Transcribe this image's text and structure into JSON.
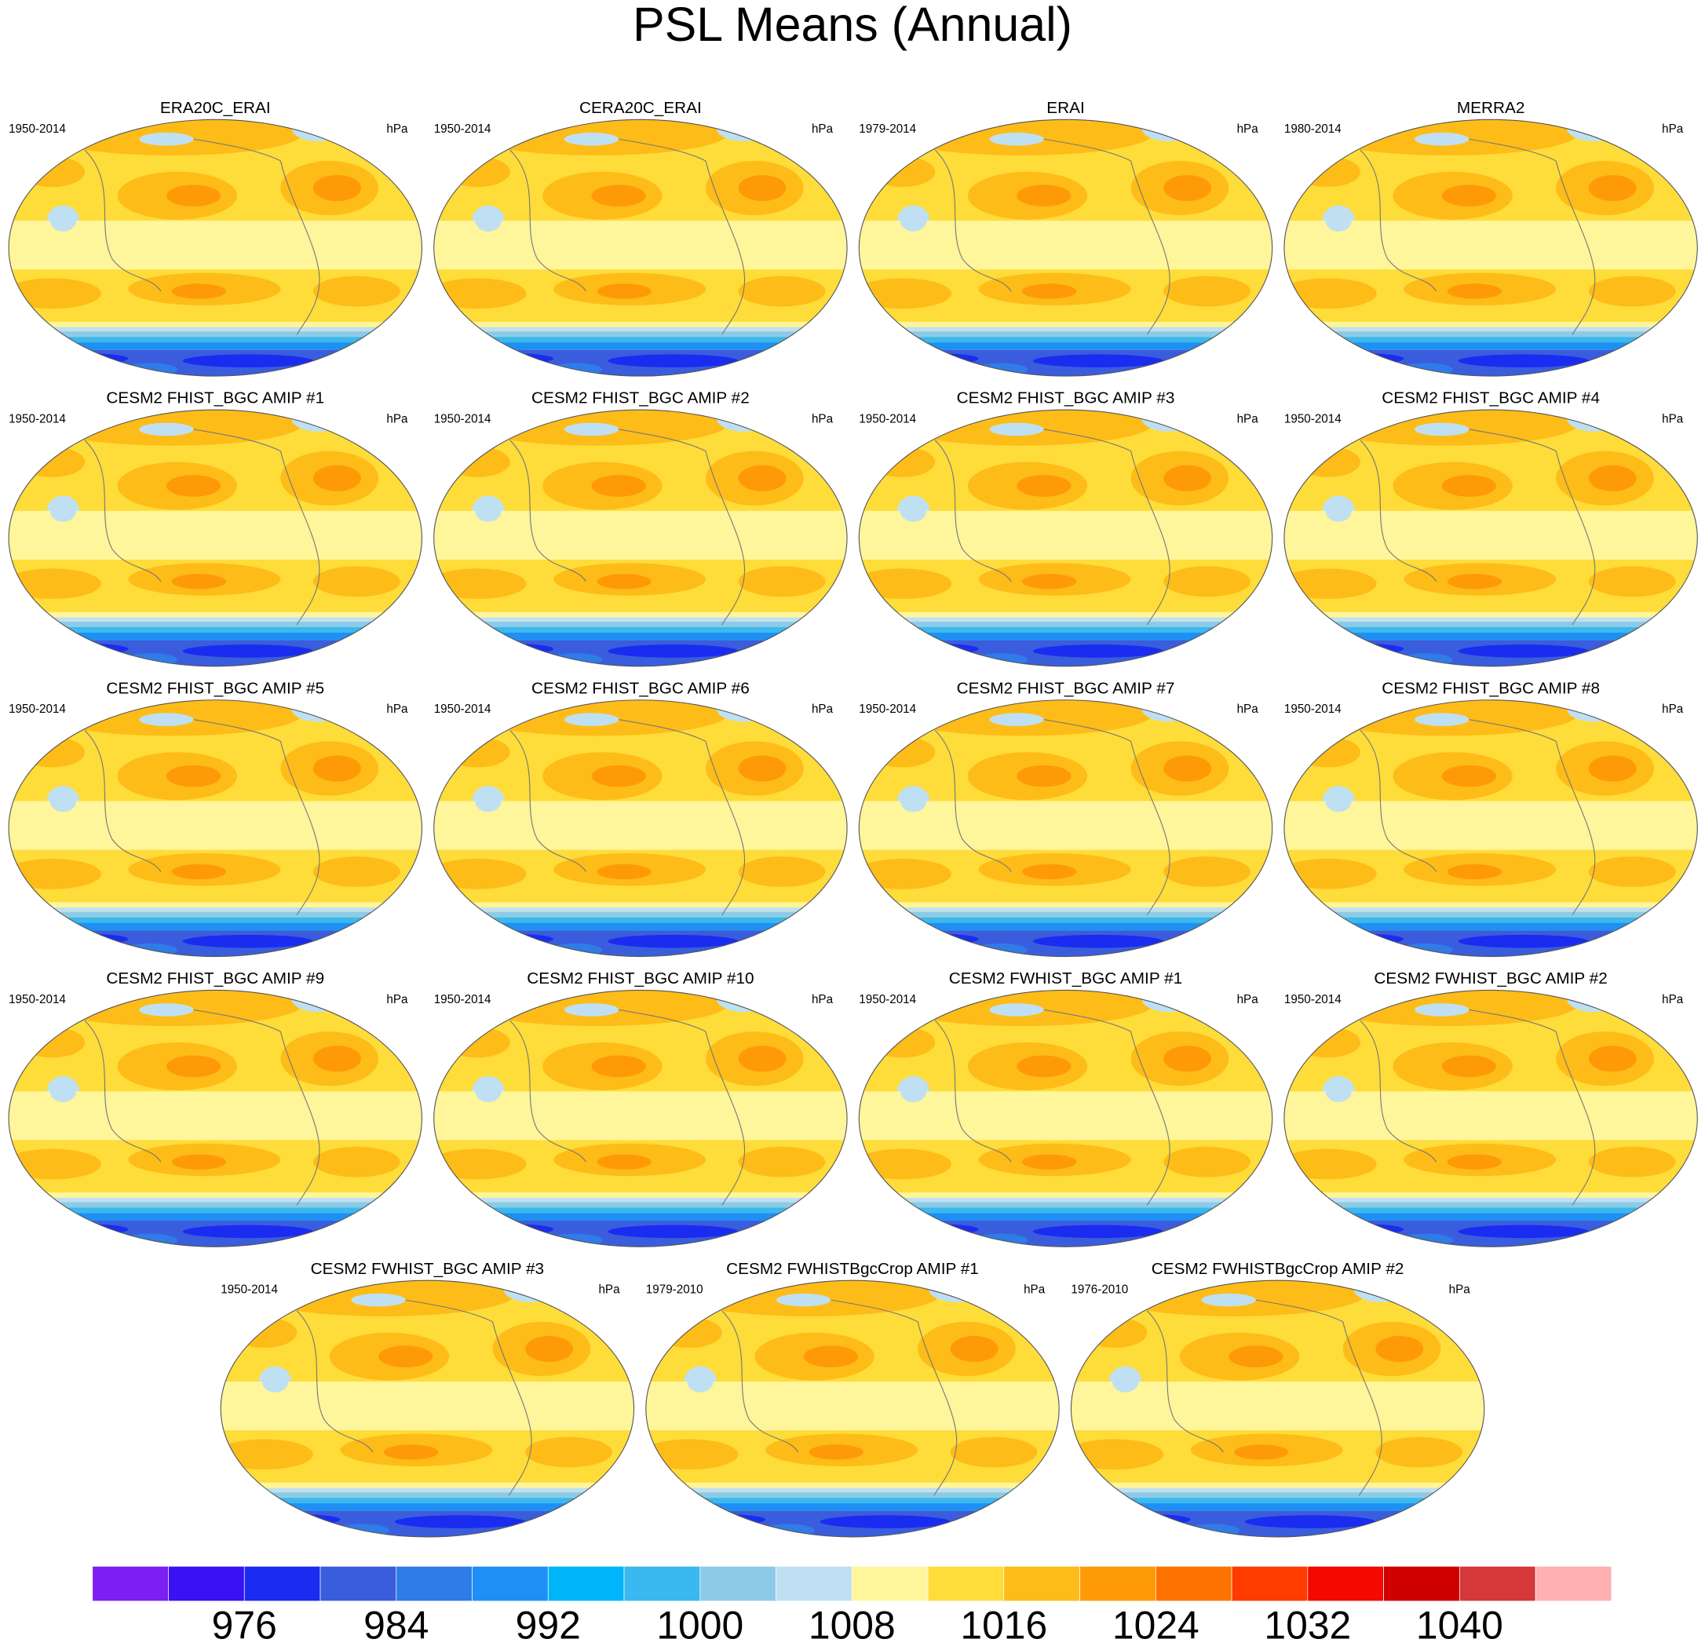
{
  "chart_data": {
    "type": "map-panels",
    "title": "PSL Means (Annual)",
    "units": "hPa",
    "panels": [
      {
        "title": "ERA20C_ERAI",
        "period": "1950-2014"
      },
      {
        "title": "CERA20C_ERAI",
        "period": "1950-2014"
      },
      {
        "title": "ERAI",
        "period": "1979-2014"
      },
      {
        "title": "MERRA2",
        "period": "1980-2014"
      },
      {
        "title": "CESM2 FHIST_BGC AMIP #1",
        "period": "1950-2014"
      },
      {
        "title": "CESM2 FHIST_BGC AMIP #2",
        "period": "1950-2014"
      },
      {
        "title": "CESM2 FHIST_BGC AMIP #3",
        "period": "1950-2014"
      },
      {
        "title": "CESM2 FHIST_BGC AMIP #4",
        "period": "1950-2014"
      },
      {
        "title": "CESM2 FHIST_BGC AMIP #5",
        "period": "1950-2014"
      },
      {
        "title": "CESM2 FHIST_BGC AMIP #6",
        "period": "1950-2014"
      },
      {
        "title": "CESM2 FHIST_BGC AMIP #7",
        "period": "1950-2014"
      },
      {
        "title": "CESM2 FHIST_BGC AMIP #8",
        "period": "1950-2014"
      },
      {
        "title": "CESM2 FHIST_BGC AMIP #9",
        "period": "1950-2014"
      },
      {
        "title": "CESM2 FHIST_BGC AMIP #10",
        "period": "1950-2014"
      },
      {
        "title": "CESM2 FWHIST_BGC AMIP #1",
        "period": "1950-2014"
      },
      {
        "title": "CESM2 FWHIST_BGC AMIP #2",
        "period": "1950-2014"
      },
      {
        "title": "CESM2 FWHIST_BGC AMIP #3",
        "period": "1950-2014"
      },
      {
        "title": "CESM2 FWHISTBgcCrop AMIP #1",
        "period": "1979-2010"
      },
      {
        "title": "CESM2 FWHISTBgcCrop AMIP #2",
        "period": "1976-2010"
      }
    ],
    "colorbar": {
      "lim": [
        968,
        1048
      ],
      "ticks": [
        976,
        984,
        992,
        1000,
        1008,
        1016,
        1024,
        1032,
        1040
      ],
      "colors": [
        "#7d1ef2",
        "#3a10f5",
        "#1a2cf0",
        "#3a5ddd",
        "#2f7ce8",
        "#1e90f5",
        "#00b4fa",
        "#3ab8f0",
        "#8ccbe8",
        "#bfe0f2",
        "#fff59a",
        "#fedc3a",
        "#febc18",
        "#fe9a08",
        "#fe7200",
        "#fe3c00",
        "#f50800",
        "#d00000",
        "#d43838",
        "#ffb0b0"
      ]
    }
  }
}
